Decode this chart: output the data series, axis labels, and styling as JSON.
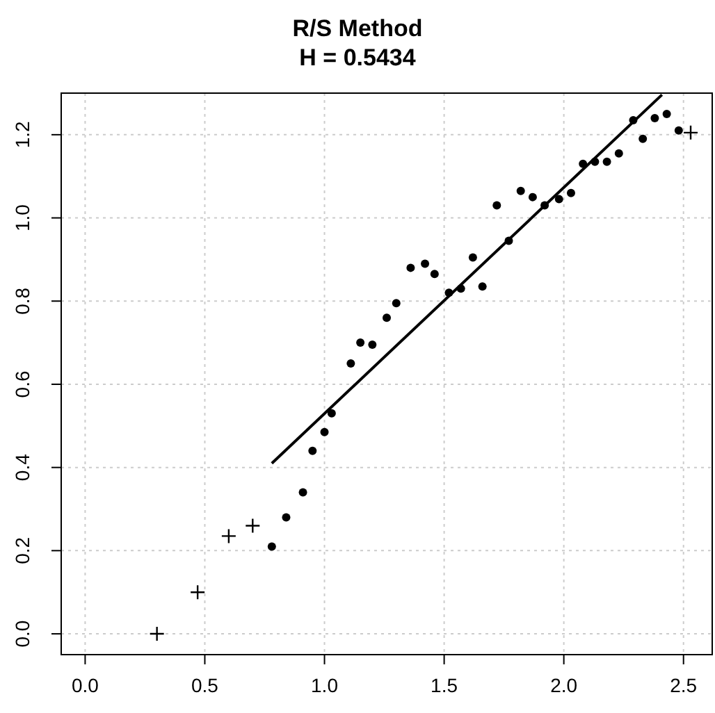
{
  "chart_data": {
    "type": "scatter",
    "title": "R/S Method",
    "subtitle": "H = 0.5434",
    "xlim": [
      -0.1,
      2.62
    ],
    "xticks": [
      {
        "value": 0,
        "label": "0.0"
      },
      0.5,
      {
        "value": 1,
        "label": "1.0"
      },
      1.5,
      {
        "value": 2,
        "label": "2.0"
      },
      2.5
    ],
    "ylim": [
      -0.05,
      1.3
    ],
    "yticks": [
      {
        "value": 0,
        "label": "0.0"
      },
      0.2,
      0.4,
      0.6,
      0.8,
      {
        "value": 1,
        "label": "1.0"
      },
      1.2
    ],
    "grid": true,
    "series": [
      {
        "marker": "cross",
        "color": "#000000",
        "x": [
          0.3,
          0.47,
          0.6,
          0.7,
          2.53
        ],
        "values": [
          0.0,
          0.1,
          0.235,
          0.26,
          1.205
        ]
      },
      {
        "marker": "circle",
        "color": "#000000",
        "x": [
          0.78,
          0.84,
          0.91,
          0.95,
          1.0,
          1.03,
          1.11,
          1.15,
          1.2,
          1.26,
          1.3,
          1.36,
          1.42,
          1.46,
          1.52,
          1.57,
          1.62,
          1.66,
          1.72,
          1.77,
          1.82,
          1.87,
          1.92,
          1.98,
          2.03,
          2.08,
          2.13,
          2.18,
          2.23,
          2.29,
          2.33,
          2.38,
          2.43,
          2.48
        ],
        "values": [
          0.21,
          0.28,
          0.34,
          0.44,
          0.485,
          0.53,
          0.65,
          0.7,
          0.695,
          0.76,
          0.795,
          0.88,
          0.89,
          0.865,
          0.82,
          0.83,
          0.905,
          0.835,
          1.03,
          0.945,
          1.065,
          1.05,
          1.03,
          1.045,
          1.06,
          1.13,
          1.135,
          1.135,
          1.155,
          1.235,
          1.19,
          1.24,
          1.25,
          1.21
        ]
      },
      {
        "type": "line",
        "color": "#000000",
        "x": [
          0.78,
          2.41
        ],
        "values": [
          0.41,
          1.296
        ]
      }
    ]
  }
}
